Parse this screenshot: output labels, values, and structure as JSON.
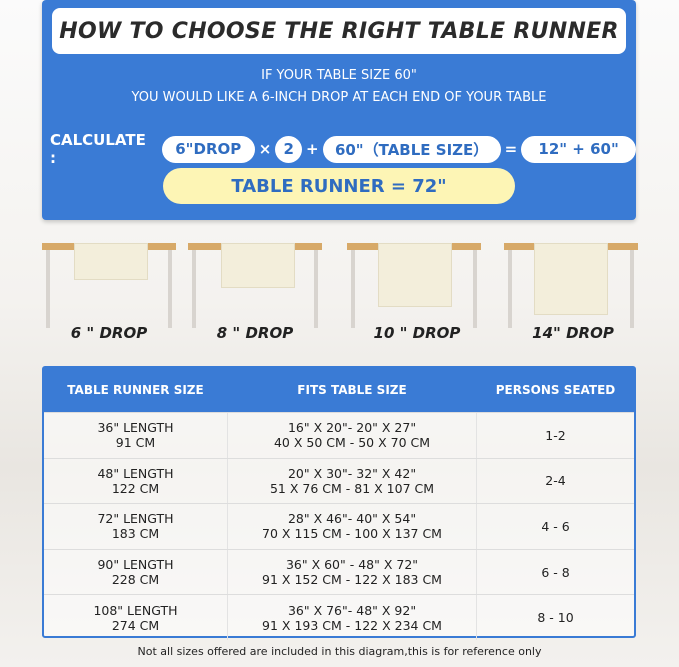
{
  "title": "HOW TO CHOOSE THE RIGHT TABLE RUNNER",
  "intro": [
    "IF YOUR TABLE SIZE 60\"",
    "YOU WOULD LIKE A 6-INCH DROP AT EACH END OF YOUR TABLE"
  ],
  "calc": {
    "label": "CALCULATE :",
    "drop": "6\"DROP",
    "times": "×",
    "multiplier": "2",
    "plus": "+",
    "table": "60\"（TABLE SIZE）",
    "equals": "=",
    "result": "12\" + 60\""
  },
  "total": "TABLE RUNNER = 72\"",
  "drops": [
    "6 \" DROP",
    "8 \" DROP",
    "10 \" DROP",
    "14\" DROP"
  ],
  "table": {
    "headers": [
      "TABLE RUNNER SIZE",
      "FITS TABLE SIZE",
      "PERSONS SEATED"
    ],
    "rows": [
      {
        "size": [
          "36\" LENGTH",
          "91 CM"
        ],
        "fits": [
          "16\" X 20\"- 20\" X 27\"",
          "40 X 50 CM - 50 X 70 CM"
        ],
        "persons": "1-2"
      },
      {
        "size": [
          "48\" LENGTH",
          "122 CM"
        ],
        "fits": [
          "20\" X 30\"- 32\" X 42\"",
          "51 X 76 CM - 81 X 107 CM"
        ],
        "persons": "2-4"
      },
      {
        "size": [
          "72\" LENGTH",
          "183 CM"
        ],
        "fits": [
          "28\" X 46\"- 40\" X 54\"",
          "70 X 115 CM - 100 X 137 CM"
        ],
        "persons": "4 - 6"
      },
      {
        "size": [
          "90\" LENGTH",
          "228 CM"
        ],
        "fits": [
          "36\" X 60\" - 48\" X 72\"",
          "91 X 152 CM - 122 X 183 CM"
        ],
        "persons": "6 - 8"
      },
      {
        "size": [
          "108\" LENGTH",
          "274 CM"
        ],
        "fits": [
          "36\" X 76\"- 48\" X 92\"",
          "91 X 193 CM - 122 X 234 CM"
        ],
        "persons": "8 - 10"
      }
    ]
  },
  "footnote": "Not all sizes offered are included in this diagram,this is for reference only",
  "colors": {
    "blue": "#3a7bd5",
    "yellow": "#fdf5b5"
  }
}
